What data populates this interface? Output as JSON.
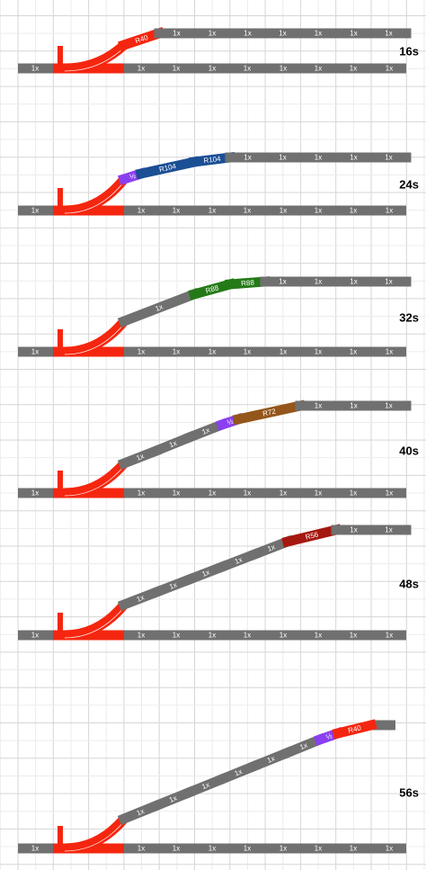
{
  "panels": [
    {
      "time": "16s",
      "bottom": [
        "1x",
        "1x",
        "1x",
        "1x",
        "1x",
        "1x",
        "1x",
        "1x",
        "1x"
      ],
      "route": [
        {
          "label": "R40",
          "color": "#f5260f"
        },
        {
          "label": "1x",
          "color": "#707070"
        },
        {
          "label": "1x",
          "color": "#707070"
        },
        {
          "label": "1x",
          "color": "#707070"
        },
        {
          "label": "1x",
          "color": "#707070"
        },
        {
          "label": "1x",
          "color": "#707070"
        },
        {
          "label": "1x",
          "color": "#707070"
        },
        {
          "label": "1x",
          "color": "#707070"
        }
      ]
    },
    {
      "time": "24s",
      "bottom": [
        "1x",
        "1x",
        "1x",
        "1x",
        "1x",
        "1x",
        "1x",
        "1x",
        "1x"
      ],
      "route": [
        {
          "label": "½",
          "color": "#8a3ff0"
        },
        {
          "label": "R104",
          "color": "#1b4f94"
        },
        {
          "label": "R104",
          "color": "#1b4f94"
        },
        {
          "label": "1x",
          "color": "#707070"
        },
        {
          "label": "1x",
          "color": "#707070"
        },
        {
          "label": "1x",
          "color": "#707070"
        },
        {
          "label": "1x",
          "color": "#707070"
        },
        {
          "label": "1x",
          "color": "#707070"
        }
      ]
    },
    {
      "time": "32s",
      "bottom": [
        "1x",
        "1x",
        "1x",
        "1x",
        "1x",
        "1x",
        "1x",
        "1x",
        "1x"
      ],
      "route": [
        {
          "label": "1x",
          "color": "#707070"
        },
        {
          "label": "R88",
          "color": "#257a18"
        },
        {
          "label": "R88",
          "color": "#257a18"
        },
        {
          "label": "1x",
          "color": "#707070"
        },
        {
          "label": "1x",
          "color": "#707070"
        },
        {
          "label": "1x",
          "color": "#707070"
        },
        {
          "label": "1x",
          "color": "#707070"
        }
      ]
    },
    {
      "time": "40s",
      "bottom": [
        "1x",
        "1x",
        "1x",
        "1x",
        "1x",
        "1x",
        "1x",
        "1x",
        "1x"
      ],
      "route": [
        {
          "label": "1x",
          "color": "#707070"
        },
        {
          "label": "1x",
          "color": "#707070"
        },
        {
          "label": "1x",
          "color": "#707070"
        },
        {
          "label": "½",
          "color": "#8a3ff0"
        },
        {
          "label": "R72",
          "color": "#94561a"
        },
        {
          "label": "1x",
          "color": "#707070"
        },
        {
          "label": "1x",
          "color": "#707070"
        },
        {
          "label": "1x",
          "color": "#707070"
        }
      ]
    },
    {
      "time": "48s",
      "bottom": [
        "1x",
        "1x",
        "1x",
        "1x",
        "1x",
        "1x",
        "1x",
        "1x",
        "1x"
      ],
      "route": [
        {
          "label": "1x",
          "color": "#707070"
        },
        {
          "label": "1x",
          "color": "#707070"
        },
        {
          "label": "1x",
          "color": "#707070"
        },
        {
          "label": "1x",
          "color": "#707070"
        },
        {
          "label": "1x",
          "color": "#707070"
        },
        {
          "label": "R56",
          "color": "#a5180f"
        },
        {
          "label": "1x",
          "color": "#707070"
        },
        {
          "label": "1x",
          "color": "#707070"
        }
      ]
    },
    {
      "time": "56s",
      "bottom": [
        "1x",
        "1x",
        "1x",
        "1x",
        "1x",
        "1x",
        "1x",
        "1x",
        "1x"
      ],
      "route": [
        {
          "label": "1x",
          "color": "#707070"
        },
        {
          "label": "1x",
          "color": "#707070"
        },
        {
          "label": "1x",
          "color": "#707070"
        },
        {
          "label": "1x",
          "color": "#707070"
        },
        {
          "label": "1x",
          "color": "#707070"
        },
        {
          "label": "1x",
          "color": "#707070"
        },
        {
          "label": "½",
          "color": "#8a3ff0"
        },
        {
          "label": "R40",
          "color": "#f5260f"
        }
      ]
    }
  ]
}
